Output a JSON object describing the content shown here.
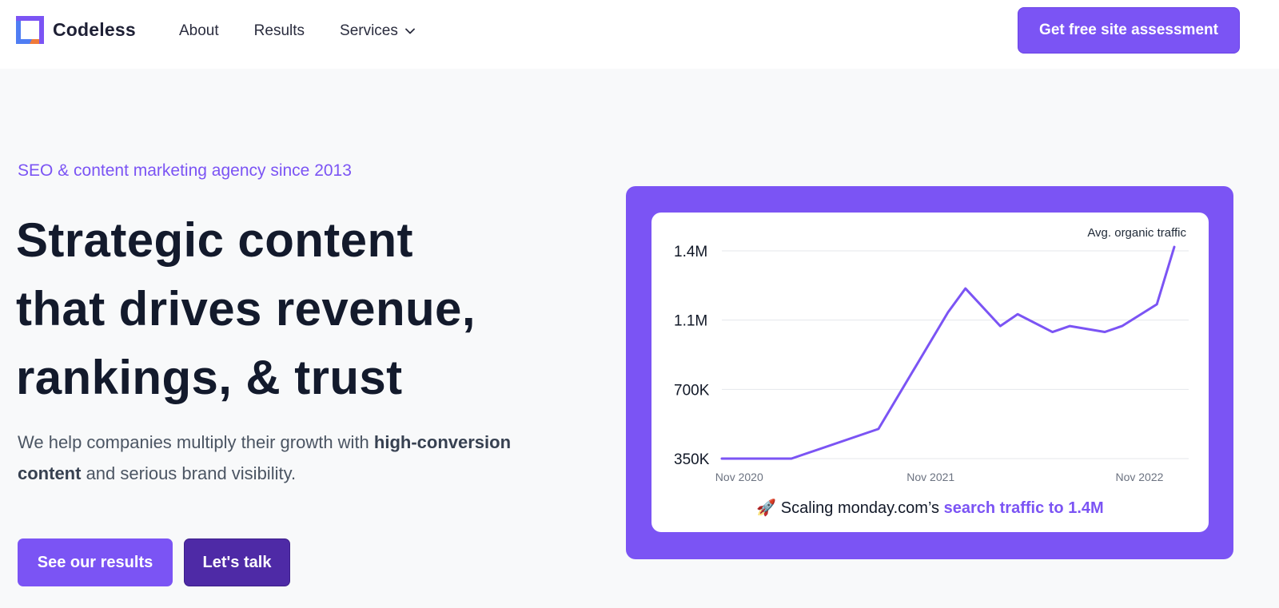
{
  "header": {
    "logo_text": "Codeless",
    "nav": [
      {
        "label": "About"
      },
      {
        "label": "Results"
      },
      {
        "label": "Services"
      }
    ],
    "cta_label": "Get free site assessment"
  },
  "hero": {
    "eyebrow": "SEO & content marketing agency since 2013",
    "headline_lines": [
      "Strategic content",
      "that drives revenue,",
      "rankings, & trust"
    ],
    "sub_part1": "We help companies multiply their growth with ",
    "sub_bold": "high-conversion content",
    "sub_part2": " and serious brand visibility.",
    "btn_results": "See our results",
    "btn_talk": "Let's talk"
  },
  "colors": {
    "accent": "#7b54f4",
    "accent_dark": "#4e2aa6",
    "headline": "#131a2c"
  },
  "chart_data": {
    "type": "line",
    "legend": "Avg. organic traffic",
    "ytick_labels": [
      "1.4M",
      "1.1M",
      "700K",
      "350K"
    ],
    "yticks": [
      1400000,
      1050000,
      700000,
      350000
    ],
    "ylim": [
      350000,
      1400000
    ],
    "xtick_labels": [
      "Nov 2020",
      "Nov 2021",
      "Nov 2022"
    ],
    "xtick_positions": [
      1,
      12,
      24
    ],
    "x": [
      0,
      4,
      9,
      13,
      14,
      16,
      17,
      19,
      20,
      22,
      23,
      25,
      26
    ],
    "values": [
      350000,
      350000,
      500000,
      1090000,
      1210000,
      1020000,
      1080000,
      990000,
      1020000,
      990000,
      1020000,
      1130000,
      1420000
    ],
    "grid": true,
    "caption_icon": "rocket-icon",
    "caption_text": " Scaling monday.com’s ",
    "caption_highlight": "search traffic to 1.4M"
  }
}
